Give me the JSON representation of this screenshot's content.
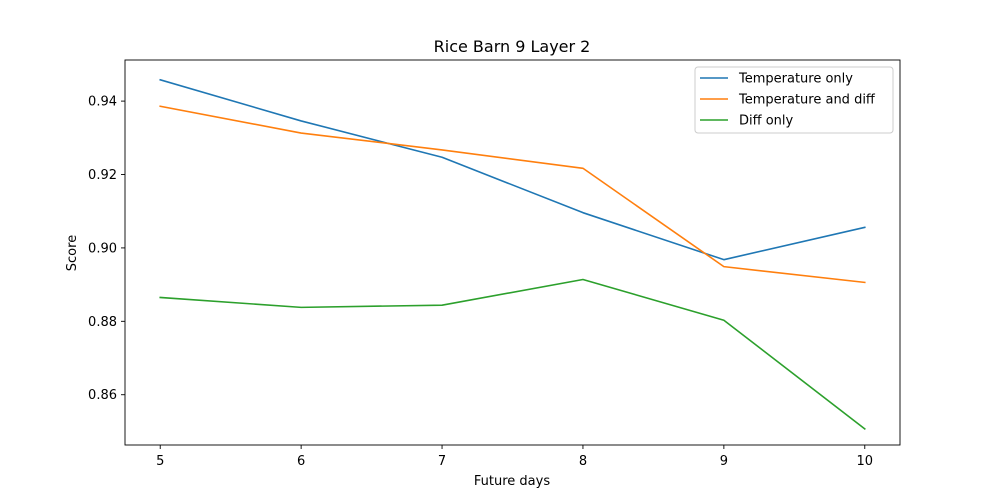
{
  "chart_data": {
    "type": "line",
    "title": "Rice Barn 9 Layer 2",
    "xlabel": "Future days",
    "ylabel": "Score",
    "x": [
      5,
      6,
      7,
      8,
      9,
      10
    ],
    "xticks": [
      "5",
      "6",
      "7",
      "8",
      "9",
      "10"
    ],
    "yticks": [
      "0.86",
      "0.88",
      "0.90",
      "0.92",
      "0.94"
    ],
    "xlim": [
      4.75,
      10.25
    ],
    "ylim": [
      0.8463,
      0.9512
    ],
    "grid": false,
    "legend_position": "top-right",
    "series": [
      {
        "name": "Temperature only",
        "color": "#1f77b4",
        "values": [
          0.9458,
          0.9346,
          0.9247,
          0.9096,
          0.8968,
          0.9056
        ]
      },
      {
        "name": "Temperature and diff",
        "color": "#ff7f0e",
        "values": [
          0.9386,
          0.9313,
          0.9267,
          0.9217,
          0.8949,
          0.8906
        ]
      },
      {
        "name": "Diff only",
        "color": "#2ca02c",
        "values": [
          0.8865,
          0.8838,
          0.8844,
          0.8914,
          0.8803,
          0.8507
        ]
      }
    ]
  }
}
